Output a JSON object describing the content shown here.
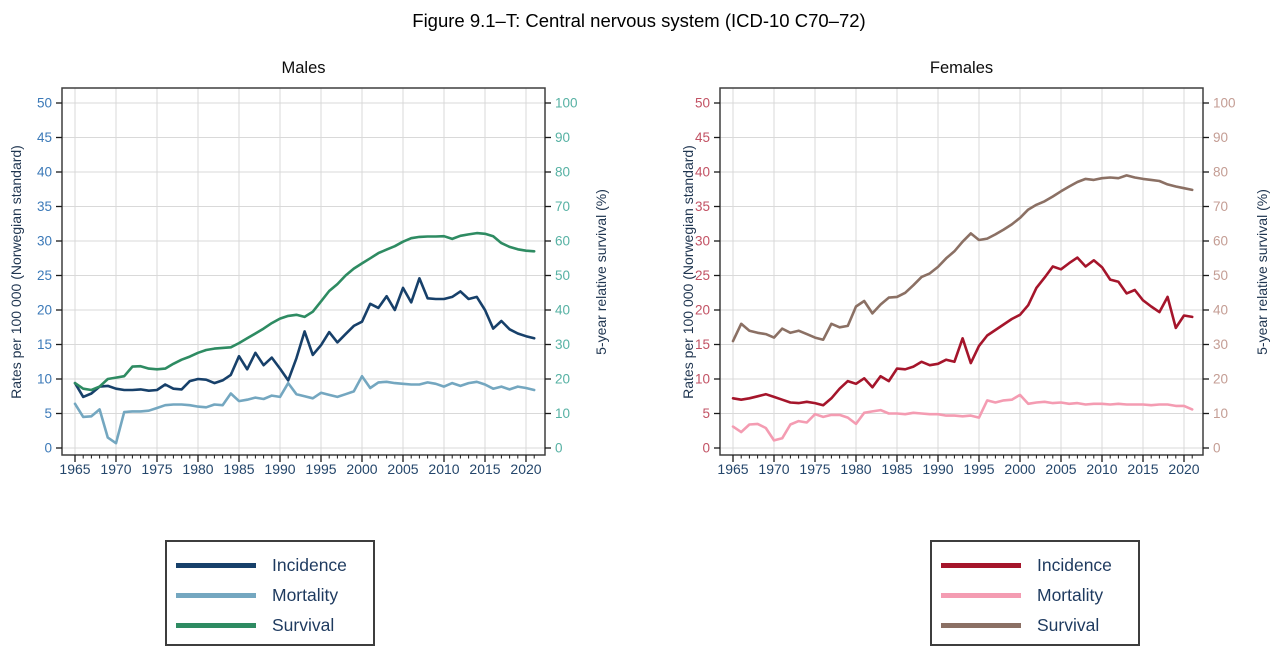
{
  "figure_title": "Figure 9.1–T: Central nervous system (ICD-10 C70–72)",
  "colors": {
    "grid": "#d9d9d9",
    "frame": "#3f3f3f",
    "tick_mark": "#1a1a1a",
    "axis_title": "#1f3550",
    "legend_text": "#1e3a5f",
    "legend_border": "#3d3d3d"
  },
  "chart_data": [
    {
      "type": "line",
      "subtitle": "Males",
      "x": [
        1965,
        1966,
        1967,
        1968,
        1969,
        1970,
        1971,
        1972,
        1973,
        1974,
        1975,
        1976,
        1977,
        1978,
        1979,
        1980,
        1981,
        1982,
        1983,
        1984,
        1985,
        1986,
        1987,
        1988,
        1989,
        1990,
        1991,
        1992,
        1993,
        1994,
        1995,
        1996,
        1997,
        1998,
        1999,
        2000,
        2001,
        2002,
        2003,
        2004,
        2005,
        2006,
        2007,
        2008,
        2009,
        2010,
        2011,
        2012,
        2013,
        2014,
        2015,
        2016,
        2017,
        2018,
        2019,
        2020,
        2021
      ],
      "x_axis": {
        "tick_labels": [
          1965,
          1970,
          1975,
          1980,
          1985,
          1990,
          1995,
          2000,
          2005,
          2010,
          2015,
          2020
        ],
        "tick_color": "#24466b"
      },
      "left_axis": {
        "title": "Rates per 100 000 (Norwegian standard)",
        "min": 0,
        "max": 50,
        "step": 5,
        "ticks": [
          0,
          5,
          10,
          15,
          20,
          25,
          30,
          35,
          40,
          45,
          50
        ],
        "tick_color": "#3b79b8"
      },
      "right_axis": {
        "title": "5-year relative survival (%)",
        "min": 0,
        "max": 100,
        "step": 10,
        "ticks": [
          0,
          10,
          20,
          30,
          40,
          50,
          60,
          70,
          80,
          90,
          100
        ],
        "tick_color": "#56b1a3"
      },
      "series": [
        {
          "name": "Incidence",
          "axis": "left",
          "color": "#17406a",
          "values": [
            9.4,
            7.4,
            7.9,
            8.9,
            9.0,
            8.6,
            8.4,
            8.4,
            8.5,
            8.3,
            8.4,
            9.2,
            8.6,
            8.5,
            9.7,
            10.0,
            9.9,
            9.4,
            9.8,
            10.6,
            13.3,
            11.4,
            13.8,
            12.0,
            13.1,
            11.5,
            9.8,
            13.0,
            16.9,
            13.5,
            14.9,
            16.8,
            15.3,
            16.5,
            17.7,
            18.3,
            20.9,
            20.3,
            22.0,
            20.0,
            23.2,
            21.1,
            24.6,
            21.7,
            21.6,
            21.6,
            21.9,
            22.7,
            21.6,
            21.9,
            20.0,
            17.3,
            18.4,
            17.2,
            16.6,
            16.2,
            15.9
          ]
        },
        {
          "name": "Mortality",
          "axis": "left",
          "color": "#74a7c0",
          "values": [
            6.4,
            4.5,
            4.6,
            5.6,
            1.5,
            0.7,
            5.2,
            5.3,
            5.3,
            5.4,
            5.8,
            6.2,
            6.3,
            6.3,
            6.2,
            6.0,
            5.9,
            6.3,
            6.2,
            7.9,
            6.8,
            7.0,
            7.3,
            7.1,
            7.6,
            7.4,
            9.4,
            7.8,
            7.5,
            7.2,
            8.0,
            7.7,
            7.4,
            7.8,
            8.2,
            10.4,
            8.7,
            9.5,
            9.6,
            9.4,
            9.3,
            9.2,
            9.2,
            9.5,
            9.3,
            8.9,
            9.4,
            9.0,
            9.4,
            9.6,
            9.2,
            8.6,
            8.9,
            8.5,
            8.9,
            8.7,
            8.4
          ]
        },
        {
          "name": "Survival",
          "axis": "right",
          "color": "#2e8b62",
          "values": [
            18.8,
            17.2,
            16.8,
            17.8,
            20.0,
            20.4,
            20.8,
            23.6,
            23.7,
            23.0,
            22.8,
            23.0,
            24.4,
            25.6,
            26.5,
            27.6,
            28.4,
            28.8,
            29.0,
            29.2,
            30.4,
            31.8,
            33.2,
            34.6,
            36.2,
            37.5,
            38.3,
            38.6,
            38.0,
            39.5,
            42.5,
            45.5,
            47.5,
            50.0,
            52.0,
            53.5,
            55.0,
            56.5,
            57.5,
            58.5,
            59.8,
            60.8,
            61.2,
            61.3,
            61.3,
            61.4,
            60.6,
            61.5,
            61.9,
            62.3,
            62.1,
            61.4,
            59.4,
            58.3,
            57.6,
            57.2,
            57.0
          ]
        }
      ]
    },
    {
      "type": "line",
      "subtitle": "Females",
      "x": [
        1965,
        1966,
        1967,
        1968,
        1969,
        1970,
        1971,
        1972,
        1973,
        1974,
        1975,
        1976,
        1977,
        1978,
        1979,
        1980,
        1981,
        1982,
        1983,
        1984,
        1985,
        1986,
        1987,
        1988,
        1989,
        1990,
        1991,
        1992,
        1993,
        1994,
        1995,
        1996,
        1997,
        1998,
        1999,
        2000,
        2001,
        2002,
        2003,
        2004,
        2005,
        2006,
        2007,
        2008,
        2009,
        2010,
        2011,
        2012,
        2013,
        2014,
        2015,
        2016,
        2017,
        2018,
        2019,
        2020,
        2021
      ],
      "x_axis": {
        "tick_labels": [
          1965,
          1970,
          1975,
          1980,
          1985,
          1990,
          1995,
          2000,
          2005,
          2010,
          2015,
          2020
        ],
        "tick_color": "#24466b"
      },
      "left_axis": {
        "title": "Rates per 100 000 (Norwegian standard)",
        "min": 0,
        "max": 50,
        "step": 5,
        "ticks": [
          0,
          5,
          10,
          15,
          20,
          25,
          30,
          35,
          40,
          45,
          50
        ],
        "tick_color": "#c25264"
      },
      "right_axis": {
        "title": "5-year relative survival (%)",
        "min": 0,
        "max": 100,
        "step": 10,
        "ticks": [
          0,
          10,
          20,
          30,
          40,
          50,
          60,
          70,
          80,
          90,
          100
        ],
        "tick_color": "#c49d94"
      },
      "series": [
        {
          "name": "Incidence",
          "axis": "left",
          "color": "#a5152b",
          "values": [
            7.2,
            7.0,
            7.2,
            7.5,
            7.8,
            7.4,
            7.0,
            6.6,
            6.5,
            6.7,
            6.5,
            6.2,
            7.2,
            8.6,
            9.7,
            9.3,
            10.1,
            8.8,
            10.4,
            9.7,
            11.5,
            11.4,
            11.8,
            12.5,
            12.0,
            12.2,
            12.8,
            12.5,
            15.9,
            12.3,
            14.8,
            16.3,
            17.1,
            17.9,
            18.7,
            19.3,
            20.7,
            23.2,
            24.7,
            26.3,
            25.9,
            26.8,
            27.6,
            26.3,
            27.2,
            26.2,
            24.4,
            24.1,
            22.4,
            22.9,
            21.4,
            20.5,
            19.7,
            21.9,
            17.4,
            19.2,
            19.0
          ]
        },
        {
          "name": "Mortality",
          "axis": "left",
          "color": "#f49cb2",
          "values": [
            3.1,
            2.3,
            3.4,
            3.5,
            2.9,
            1.1,
            1.4,
            3.4,
            3.9,
            3.7,
            4.9,
            4.5,
            4.8,
            4.8,
            4.4,
            3.5,
            5.1,
            5.3,
            5.5,
            5.0,
            5.0,
            4.9,
            5.1,
            5.0,
            4.9,
            4.9,
            4.7,
            4.7,
            4.6,
            4.7,
            4.4,
            6.9,
            6.6,
            6.9,
            7.0,
            7.7,
            6.4,
            6.6,
            6.7,
            6.5,
            6.6,
            6.4,
            6.5,
            6.3,
            6.4,
            6.4,
            6.3,
            6.4,
            6.3,
            6.3,
            6.3,
            6.2,
            6.3,
            6.3,
            6.1,
            6.1,
            5.6
          ]
        },
        {
          "name": "Survival",
          "axis": "right",
          "color": "#8b7064",
          "values": [
            31.0,
            36.0,
            34.0,
            33.4,
            33.0,
            32.0,
            34.6,
            33.4,
            34.0,
            33.0,
            32.0,
            31.4,
            36.0,
            35.0,
            35.4,
            41.0,
            42.6,
            39.0,
            41.6,
            43.6,
            43.8,
            45.0,
            47.2,
            49.6,
            50.6,
            52.5,
            55.0,
            57.0,
            59.8,
            62.2,
            60.3,
            60.7,
            61.9,
            63.3,
            64.8,
            66.7,
            69.1,
            70.5,
            71.5,
            72.9,
            74.4,
            75.8,
            77.1,
            78.0,
            77.7,
            78.2,
            78.4,
            78.2,
            79.0,
            78.4,
            78.0,
            77.7,
            77.4,
            76.4,
            75.8,
            75.3,
            74.8
          ]
        }
      ]
    }
  ]
}
